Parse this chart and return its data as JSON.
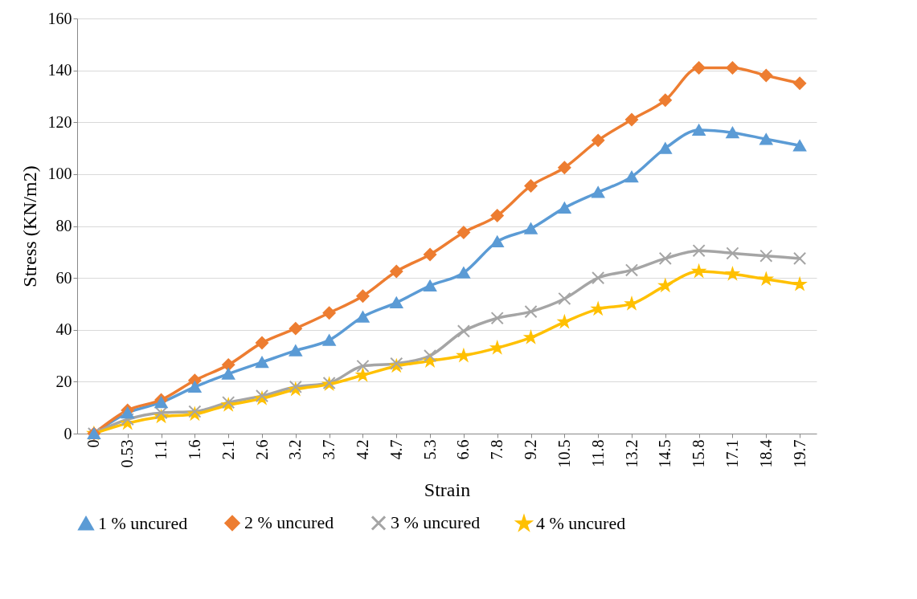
{
  "chart_data": {
    "type": "line",
    "xlabel": "Strain",
    "ylabel": "Stress (KN/m2)",
    "categories": [
      "0",
      "0.53",
      "1.1",
      "1.6",
      "2.1",
      "2.6",
      "3.2",
      "3.7",
      "4.2",
      "4.7",
      "5.3",
      "6.6",
      "7.8",
      "9.2",
      "10.5",
      "11.8",
      "13.2",
      "14.5",
      "15.8",
      "17.1",
      "18.4",
      "19.7"
    ],
    "ylim": [
      0,
      160
    ],
    "yticks": [
      0,
      20,
      40,
      60,
      80,
      100,
      120,
      140,
      160
    ],
    "grid": "y",
    "legend": "bottom",
    "line_style": "solid",
    "series": [
      {
        "name": "1 % uncured",
        "color": "#5b9bd5",
        "marker": "triangle",
        "values": [
          0,
          8,
          12,
          18,
          23,
          27.5,
          32,
          36,
          45,
          50.5,
          57,
          62,
          74,
          79,
          87,
          93,
          99,
          110,
          117,
          116,
          113.5,
          111
        ]
      },
      {
        "name": "2 % uncured",
        "color": "#ed7d31",
        "marker": "diamond",
        "values": [
          0,
          9,
          13,
          20.5,
          26.5,
          35,
          40.5,
          46.5,
          53,
          62.5,
          69,
          77.5,
          84,
          95.5,
          102.5,
          113,
          121,
          128.5,
          141,
          141,
          138,
          135
        ]
      },
      {
        "name": "3 % uncured",
        "color": "#a5a5a5",
        "marker": "cross",
        "values": [
          0,
          5.5,
          8,
          8.5,
          12,
          14.5,
          18,
          19.5,
          26,
          27,
          30,
          39.5,
          44.5,
          47,
          52,
          60,
          63,
          67.5,
          70.5,
          69.5,
          68.5,
          67.5
        ]
      },
      {
        "name": "4 % uncured",
        "color": "#ffc000",
        "marker": "star",
        "values": [
          0,
          4,
          6.5,
          7.5,
          11,
          13.5,
          17,
          19,
          22.5,
          26,
          28,
          30,
          33,
          37,
          43,
          48,
          50,
          57,
          62.5,
          61.5,
          59.5,
          57.5
        ]
      }
    ]
  }
}
